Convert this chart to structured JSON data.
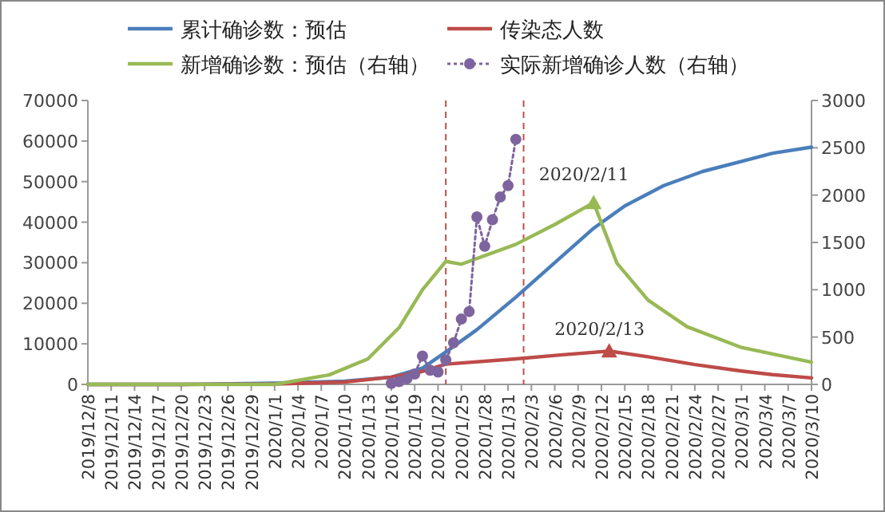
{
  "chart_data": {
    "type": "line",
    "legend": "top",
    "grid": false,
    "xlim": [
      "2019-12-08",
      "2020-03-10"
    ],
    "xticks": [
      {
        "value": "2019-12-08",
        "label": "2019/12/8"
      },
      {
        "value": "2019-12-11",
        "label": "2019/12/11"
      },
      {
        "value": "2019-12-14",
        "label": "2019/12/14"
      },
      {
        "value": "2019-12-17",
        "label": "2019/12/17"
      },
      {
        "value": "2019-12-20",
        "label": "2019/12/20"
      },
      {
        "value": "2019-12-23",
        "label": "2019/12/23"
      },
      {
        "value": "2019-12-26",
        "label": "2019/12/26"
      },
      {
        "value": "2019-12-29",
        "label": "2019/12/29"
      },
      {
        "value": "2020-01-01",
        "label": "2020/1/1"
      },
      {
        "value": "2020-01-04",
        "label": "2020/1/4"
      },
      {
        "value": "2020-01-07",
        "label": "2020/1/7"
      },
      {
        "value": "2020-01-10",
        "label": "2020/1/10"
      },
      {
        "value": "2020-01-13",
        "label": "2020/1/13"
      },
      {
        "value": "2020-01-16",
        "label": "2020/1/16"
      },
      {
        "value": "2020-01-19",
        "label": "2020/1/19"
      },
      {
        "value": "2020-01-22",
        "label": "2020/1/22"
      },
      {
        "value": "2020-01-25",
        "label": "2020/1/25"
      },
      {
        "value": "2020-01-28",
        "label": "2020/1/28"
      },
      {
        "value": "2020-01-31",
        "label": "2020/1/31"
      },
      {
        "value": "2020-02-03",
        "label": "2020/2/3"
      },
      {
        "value": "2020-02-06",
        "label": "2020/2/6"
      },
      {
        "value": "2020-02-09",
        "label": "2020/2/9"
      },
      {
        "value": "2020-02-12",
        "label": "2020/2/12"
      },
      {
        "value": "2020-02-15",
        "label": "2020/2/15"
      },
      {
        "value": "2020-02-18",
        "label": "2020/2/18"
      },
      {
        "value": "2020-02-21",
        "label": "2020/2/21"
      },
      {
        "value": "2020-02-24",
        "label": "2020/2/24"
      },
      {
        "value": "2020-02-27",
        "label": "2020/2/27"
      },
      {
        "value": "2020-03-01",
        "label": "2020/3/1"
      },
      {
        "value": "2020-03-04",
        "label": "2020/3/4"
      },
      {
        "value": "2020-03-07",
        "label": "2020/3/7"
      },
      {
        "value": "2020-03-10",
        "label": "2020/3/10"
      }
    ],
    "ylim": [
      0,
      70000
    ],
    "yticks": [
      0,
      10000,
      20000,
      30000,
      40000,
      50000,
      60000,
      70000
    ],
    "y2lim": [
      0,
      3000
    ],
    "y2ticks": [
      0,
      500,
      1000,
      1500,
      2000,
      2500,
      3000
    ],
    "ref_lines": [
      {
        "axis": "x",
        "value": "2020-01-23",
        "color": "#c0504d",
        "line_style": "dashed"
      },
      {
        "axis": "x",
        "value": "2020-02-02",
        "color": "#c0504d",
        "line_style": "dashed"
      }
    ],
    "annotations": [
      {
        "text": "2020/2/11",
        "x": "2020-02-11",
        "y": 44800
      },
      {
        "text": "2020/2/13",
        "x": "2020-02-13",
        "y": 8200
      }
    ],
    "series": [
      {
        "name": "累计确诊数：预估",
        "color": "#4a7ebb",
        "marker": "none",
        "line_style": "solid",
        "x": [
          "2019-12-08",
          "2019-12-20",
          "2020-01-01",
          "2020-01-10",
          "2020-01-16",
          "2020-01-20",
          "2020-01-23",
          "2020-01-27",
          "2020-02-01",
          "2020-02-06",
          "2020-02-11",
          "2020-02-15",
          "2020-02-20",
          "2020-02-25",
          "2020-03-01",
          "2020-03-05",
          "2020-03-10"
        ],
        "values": [
          0,
          0,
          300,
          800,
          1800,
          4000,
          8000,
          13500,
          21500,
          30000,
          38500,
          44000,
          49000,
          52500,
          55000,
          57000,
          58500
        ]
      },
      {
        "name": "传染态人数",
        "color": "#be4b48",
        "marker": "none",
        "line_style": "solid",
        "x": [
          "2019-12-08",
          "2019-12-20",
          "2020-01-01",
          "2020-01-10",
          "2020-01-16",
          "2020-01-20",
          "2020-01-23",
          "2020-02-01",
          "2020-02-07",
          "2020-02-13",
          "2020-02-18",
          "2020-02-24",
          "2020-03-01",
          "2020-03-05",
          "2020-03-10"
        ],
        "values": [
          0,
          0,
          100,
          600,
          1800,
          3200,
          5000,
          6300,
          7300,
          8200,
          6800,
          4900,
          3300,
          2400,
          1600
        ]
      },
      {
        "name": "新增确诊数：预估（右轴）",
        "color": "#98b954",
        "marker": "none",
        "line_style": "solid",
        "axis": "y2",
        "x": [
          "2019-12-08",
          "2019-12-20",
          "2020-01-01",
          "2020-01-08",
          "2020-01-13",
          "2020-01-17",
          "2020-01-20",
          "2020-01-23",
          "2020-01-25",
          "2020-02-01",
          "2020-02-06",
          "2020-02-11",
          "2020-02-14",
          "2020-02-18",
          "2020-02-23",
          "2020-03-01",
          "2020-03-10"
        ],
        "values": [
          0,
          0,
          0,
          100,
          270,
          600,
          1000,
          1300,
          1270,
          1480,
          1690,
          1920,
          1280,
          890,
          610,
          390,
          235
        ]
      },
      {
        "name": "实际新增确诊人数（右轴）",
        "color": "#7e649e",
        "marker": "circle",
        "line_style": "dotted",
        "axis": "y2",
        "x": [
          "2020-01-16",
          "2020-01-17",
          "2020-01-18",
          "2020-01-19",
          "2020-01-20",
          "2020-01-21",
          "2020-01-22",
          "2020-01-23",
          "2020-01-24",
          "2020-01-25",
          "2020-01-26",
          "2020-01-27",
          "2020-01-28",
          "2020-01-29",
          "2020-01-30",
          "2020-01-31",
          "2020-02-01"
        ],
        "values": [
          10,
          30,
          60,
          110,
          300,
          150,
          130,
          260,
          440,
          690,
          770,
          1770,
          1460,
          1740,
          1980,
          2100,
          2590
        ]
      }
    ]
  }
}
